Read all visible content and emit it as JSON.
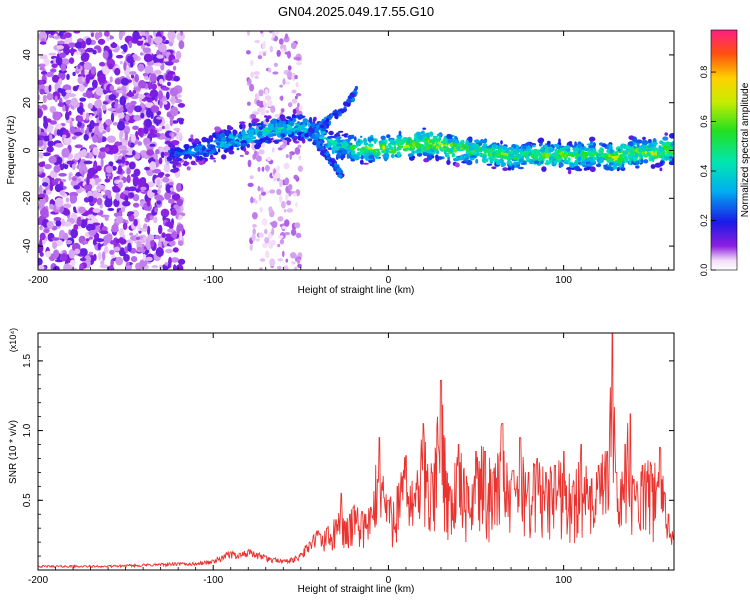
{
  "title": "GN04.2025.049.17.55.G10",
  "chart_data": [
    {
      "type": "heatmap",
      "xlabel": "Height of straight line (km)",
      "ylabel": "Frequency (Hz)",
      "xlim": [
        -200,
        163
      ],
      "ylim": [
        -50,
        50
      ],
      "xticks": [
        -200,
        -100,
        0,
        100
      ],
      "yticks": [
        -40,
        -20,
        0,
        20,
        40
      ],
      "colorbar": {
        "label": "Normalized spectral amplitude",
        "range": [
          0,
          0.97
        ],
        "ticks": [
          0,
          0.2,
          0.4,
          0.6,
          0.8
        ]
      },
      "ridge": {
        "x": [
          -120,
          -110,
          -100,
          -90,
          -80,
          -70,
          -60,
          -50,
          -40,
          -30,
          -20,
          -10,
          0,
          10,
          20,
          30,
          40,
          50,
          60,
          70,
          80,
          90,
          100,
          110,
          120,
          130,
          140,
          150,
          160
        ],
        "y": [
          -2,
          0,
          2,
          4,
          6,
          8,
          9,
          10,
          7,
          2,
          1,
          1,
          1,
          2,
          3,
          2,
          1,
          0,
          -1,
          -2,
          -2,
          -2,
          -2,
          -2,
          -1,
          -3,
          -1,
          -1,
          0
        ],
        "amplitude": [
          0.3,
          0.35,
          0.4,
          0.45,
          0.45,
          0.5,
          0.5,
          0.5,
          0.45,
          0.55,
          0.6,
          0.7,
          0.75,
          0.75,
          0.8,
          0.75,
          0.7,
          0.65,
          0.7,
          0.65,
          0.6,
          0.65,
          0.7,
          0.65,
          0.6,
          0.75,
          0.7,
          0.75,
          0.7
        ]
      },
      "branches": [
        {
          "x": [
            -45,
            -35,
            -25,
            -18
          ],
          "y": [
            8,
            12,
            18,
            25
          ]
        },
        {
          "x": [
            -40,
            -32,
            -26
          ],
          "y": [
            2,
            -5,
            -11
          ]
        }
      ]
    },
    {
      "type": "line",
      "xlabel": "Height of straight line (km)",
      "ylabel": "SNR (10 * v/v)",
      "y_multiplier": "(x10⁴)",
      "xlim": [
        -200,
        163
      ],
      "ylim": [
        0,
        1.7
      ],
      "xticks": [
        -200,
        -100,
        0,
        100
      ],
      "yticks": [
        0.5,
        1.0,
        1.5
      ],
      "ytick_labels": [
        "0.5",
        "1.0",
        "1.5"
      ],
      "color": "#e8332f",
      "series": [
        {
          "x": [
            -200,
            -180,
            -160,
            -140,
            -120,
            -110,
            -100,
            -95,
            -90,
            -85,
            -80,
            -75,
            -70,
            -65,
            -60,
            -55,
            -50,
            -45,
            -40,
            -35,
            -30,
            -27,
            -25,
            -22,
            -20,
            -15,
            -10,
            -5,
            0,
            5,
            10,
            15,
            20,
            25,
            30,
            35,
            40,
            45,
            50,
            55,
            60,
            65,
            70,
            75,
            80,
            85,
            90,
            95,
            100,
            105,
            110,
            115,
            120,
            125,
            128,
            130,
            135,
            138,
            140,
            145,
            150,
            155,
            158,
            160,
            163
          ],
          "y": [
            0.03,
            0.03,
            0.03,
            0.04,
            0.05,
            0.05,
            0.07,
            0.1,
            0.13,
            0.12,
            0.14,
            0.12,
            0.1,
            0.08,
            0.07,
            0.08,
            0.12,
            0.2,
            0.28,
            0.3,
            0.36,
            0.55,
            0.35,
            0.4,
            0.45,
            0.42,
            0.45,
            0.95,
            0.5,
            0.6,
            0.82,
            0.55,
            1.05,
            0.7,
            1.36,
            0.6,
            0.9,
            0.62,
            0.85,
            0.85,
            0.7,
            1.05,
            0.65,
            0.95,
            0.7,
            0.8,
            0.7,
            0.75,
            0.85,
            0.6,
            0.9,
            0.6,
            0.75,
            0.85,
            1.7,
            0.7,
            0.9,
            1.12,
            0.65,
            0.75,
            0.75,
            0.88,
            0.55,
            0.4,
            0.22
          ]
        }
      ]
    }
  ]
}
